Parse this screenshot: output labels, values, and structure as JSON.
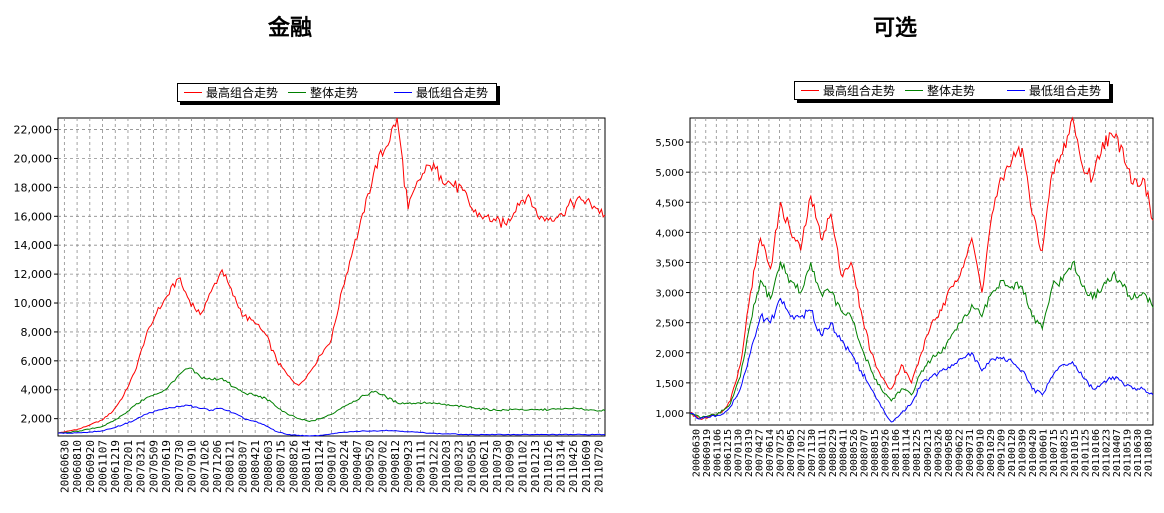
{
  "charts": [
    {
      "title": "金融"
    },
    {
      "title": "可选"
    }
  ],
  "colors": {
    "high": "#ff0000",
    "overall": "#008000",
    "low": "#0000ff",
    "grid": "#8c8c8c"
  },
  "chart_data": [
    {
      "type": "line",
      "title": "金融",
      "legend": [
        "最高组合走势",
        "整体走势",
        "最低组合走势"
      ],
      "legend_placement": "top-center",
      "grid": true,
      "ylim": [
        800,
        22800
      ],
      "yticks": [
        2000,
        4000,
        6000,
        8000,
        10000,
        12000,
        14000,
        16000,
        18000,
        20000,
        22000
      ],
      "ytick_labels": [
        "2,000",
        "4,000",
        "6,000",
        "8,000",
        "10,000",
        "12,000",
        "14,000",
        "16,000",
        "18,000",
        "20,000",
        "22,000"
      ],
      "xtick_labels": [
        "20060630",
        "20060810",
        "20060920",
        "20061107",
        "20061219",
        "20070201",
        "20070321",
        "20070509",
        "20070619",
        "20070730",
        "20070910",
        "20071026",
        "20071206",
        "20080121",
        "20080307",
        "20080421",
        "20080603",
        "20080715",
        "20080826",
        "20081014",
        "20081124",
        "20090107",
        "20090224",
        "20090407",
        "20090520",
        "20090702",
        "20090812",
        "20090923",
        "20091111",
        "20091222",
        "20100203",
        "20100323",
        "20100505",
        "20100621",
        "20100730",
        "20100909",
        "20101102",
        "20101213",
        "20110126",
        "20110314",
        "20110426",
        "20110609",
        "20110720"
      ],
      "series": [
        {
          "name": "最高组合走势",
          "color": "#ff0000",
          "values": [
            1000,
            1150,
            1300,
            1600,
            1900,
            2500,
            3600,
            5200,
            7600,
            9300,
            10500,
            11700,
            10200,
            9200,
            10800,
            12300,
            10500,
            9100,
            8600,
            7800,
            6000,
            5000,
            4300,
            5200,
            6400,
            7500,
            11000,
            13800,
            16300,
            19500,
            20800,
            22800,
            16500,
            18500,
            19500,
            18800,
            18200,
            17800,
            16300,
            16000,
            15700,
            15400,
            16900,
            17500,
            15800,
            15900,
            16200,
            16900,
            17100,
            16700,
            16100
          ]
        },
        {
          "name": "整体走势",
          "color": "#008000",
          "values": [
            1000,
            1050,
            1150,
            1300,
            1450,
            1800,
            2300,
            2900,
            3400,
            3700,
            4100,
            5000,
            5500,
            4900,
            4700,
            4800,
            4200,
            3800,
            3600,
            3400,
            2800,
            2300,
            2000,
            1800,
            2000,
            2300,
            2800,
            3200,
            3600,
            3900,
            3500,
            3100,
            3050,
            3100,
            3100,
            3000,
            2900,
            2850,
            2750,
            2650,
            2600,
            2600,
            2650,
            2600,
            2600,
            2650,
            2650,
            2700,
            2650,
            2600,
            2550
          ]
        },
        {
          "name": "最低组合走势",
          "color": "#0000ff",
          "values": [
            1000,
            1000,
            1030,
            1080,
            1150,
            1350,
            1600,
            1900,
            2300,
            2550,
            2700,
            2850,
            2900,
            2700,
            2600,
            2700,
            2400,
            2000,
            1800,
            1500,
            1100,
            900,
            850,
            800,
            850,
            950,
            1050,
            1100,
            1150,
            1150,
            1200,
            1150,
            1100,
            1050,
            1000,
            950,
            950,
            900,
            900,
            900,
            900,
            900,
            900,
            900,
            900,
            900,
            900,
            900,
            900,
            900,
            900
          ]
        }
      ]
    },
    {
      "type": "line",
      "title": "可选",
      "legend": [
        "最高组合走势",
        "整体走势",
        "最低组合走势"
      ],
      "legend_placement": "top-center",
      "grid": true,
      "ylim": [
        800,
        5900
      ],
      "yticks": [
        1000,
        1500,
        2000,
        2500,
        3000,
        3500,
        4000,
        4500,
        5000,
        5500
      ],
      "ytick_labels": [
        "1,000",
        "1,500",
        "2,000",
        "2,500",
        "3,000",
        "3,500",
        "4,000",
        "4,500",
        "5,000",
        "5,500"
      ],
      "xtick_labels": [
        "20060630",
        "20060919",
        "20061106",
        "20061215",
        "20070130",
        "20070319",
        "20070427",
        "20070614",
        "20070725",
        "20070905",
        "20071022",
        "20071130",
        "20080111",
        "20080229",
        "20080411",
        "20080526",
        "20080707",
        "20080815",
        "20080926",
        "20081106",
        "20081114",
        "20081225",
        "20090213",
        "20090326",
        "20090508",
        "20090622",
        "20090731",
        "20090910",
        "20091029",
        "20091209",
        "20100120",
        "20100309",
        "20100420",
        "20100601",
        "20100715",
        "20100825",
        "20101015",
        "20101125",
        "20110106",
        "20110223",
        "20110407",
        "20110519",
        "20110630",
        "20110810"
      ],
      "series": [
        {
          "name": "最高组合走势",
          "color": "#ff0000",
          "values": [
            1000,
            900,
            950,
            1000,
            1200,
            1800,
            3000,
            3900,
            3400,
            4500,
            4000,
            3700,
            4600,
            3900,
            4300,
            3300,
            3500,
            2700,
            2000,
            1600,
            1400,
            1800,
            1500,
            2000,
            2500,
            2700,
            3100,
            3400,
            3900,
            3000,
            4300,
            4900,
            5200,
            5400,
            4300,
            3700,
            5000,
            5300,
            5900,
            5100,
            4900,
            5500,
            5600,
            5400,
            4800,
            4900,
            4200
          ]
        },
        {
          "name": "整体走势",
          "color": "#008000",
          "values": [
            1000,
            920,
            960,
            1000,
            1150,
            1600,
            2500,
            3200,
            2900,
            3500,
            3200,
            3000,
            3500,
            3000,
            3000,
            2700,
            2600,
            2100,
            1700,
            1400,
            1200,
            1400,
            1300,
            1700,
            1900,
            2000,
            2300,
            2500,
            2800,
            2600,
            3000,
            3200,
            3100,
            3100,
            2600,
            2400,
            3100,
            3200,
            3500,
            3100,
            2900,
            3100,
            3300,
            3100,
            2900,
            3000,
            2750
          ]
        },
        {
          "name": "最低组合走势",
          "color": "#0000ff",
          "values": [
            1000,
            900,
            930,
            960,
            1100,
            1400,
            2000,
            2600,
            2500,
            2900,
            2600,
            2600,
            2700,
            2300,
            2500,
            2200,
            2000,
            1700,
            1400,
            1100,
            850,
            1000,
            1150,
            1500,
            1600,
            1700,
            1800,
            1900,
            2000,
            1700,
            1900,
            1900,
            1850,
            1700,
            1400,
            1300,
            1600,
            1800,
            1850,
            1600,
            1400,
            1500,
            1600,
            1500,
            1400,
            1400,
            1300
          ]
        }
      ]
    }
  ]
}
